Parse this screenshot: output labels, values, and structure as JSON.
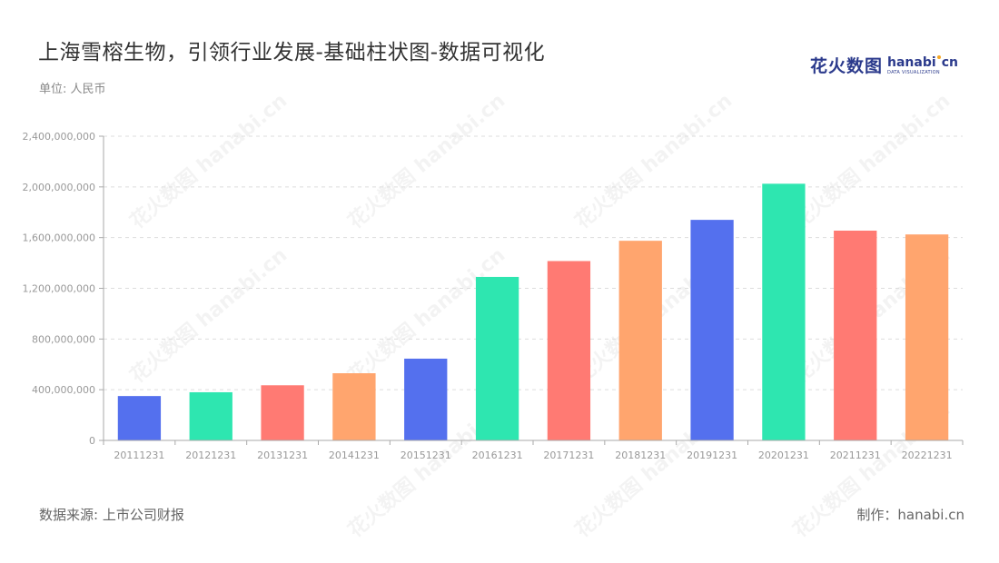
{
  "header": {
    "title": "上海雪榕生物，引领行业发展-基础柱状图-数据可视化",
    "unit": "单位: 人民币"
  },
  "logo": {
    "cn": "花火数图",
    "en_a": "hanab",
    "en_b": "cn",
    "tagline": "DATA VISUALIZATION"
  },
  "footer": {
    "source": "数据来源: 上市公司财报",
    "credit": "制作：hanabi.cn"
  },
  "watermark": {
    "text": "花火数图 hanabi.cn"
  },
  "colors": {
    "blue": "#5470ee",
    "green": "#2ee6b0",
    "red": "#ff7a73",
    "orange": "#ffa56e",
    "grid": "#dddddd",
    "axis": "#aaaaaa",
    "tick_text": "#999999"
  },
  "chart_data": {
    "type": "bar",
    "title": "上海雪榕生物，引领行业发展-基础柱状图-数据可视化",
    "xlabel": "",
    "ylabel": "",
    "ylim": [
      0,
      2400000000
    ],
    "yticks": [
      0,
      400000000,
      800000000,
      1200000000,
      1600000000,
      2000000000,
      2400000000
    ],
    "ytick_labels": [
      "0",
      "400,000,000",
      "800,000,000",
      "1,200,000,000",
      "1,600,000,000",
      "2,000,000,000",
      "2,400,000,000"
    ],
    "grid": true,
    "legend": "none",
    "categories": [
      "20111231",
      "20121231",
      "20131231",
      "20141231",
      "20151231",
      "20161231",
      "20171231",
      "20181231",
      "20191231",
      "20201231",
      "20211231",
      "20221231"
    ],
    "values": [
      350000000,
      380000000,
      435000000,
      530000000,
      645000000,
      1290000000,
      1415000000,
      1575000000,
      1740000000,
      2025000000,
      1655000000,
      1625000000
    ],
    "bar_colors": [
      "blue",
      "green",
      "red",
      "orange",
      "blue",
      "green",
      "red",
      "orange",
      "blue",
      "green",
      "red",
      "orange"
    ]
  }
}
